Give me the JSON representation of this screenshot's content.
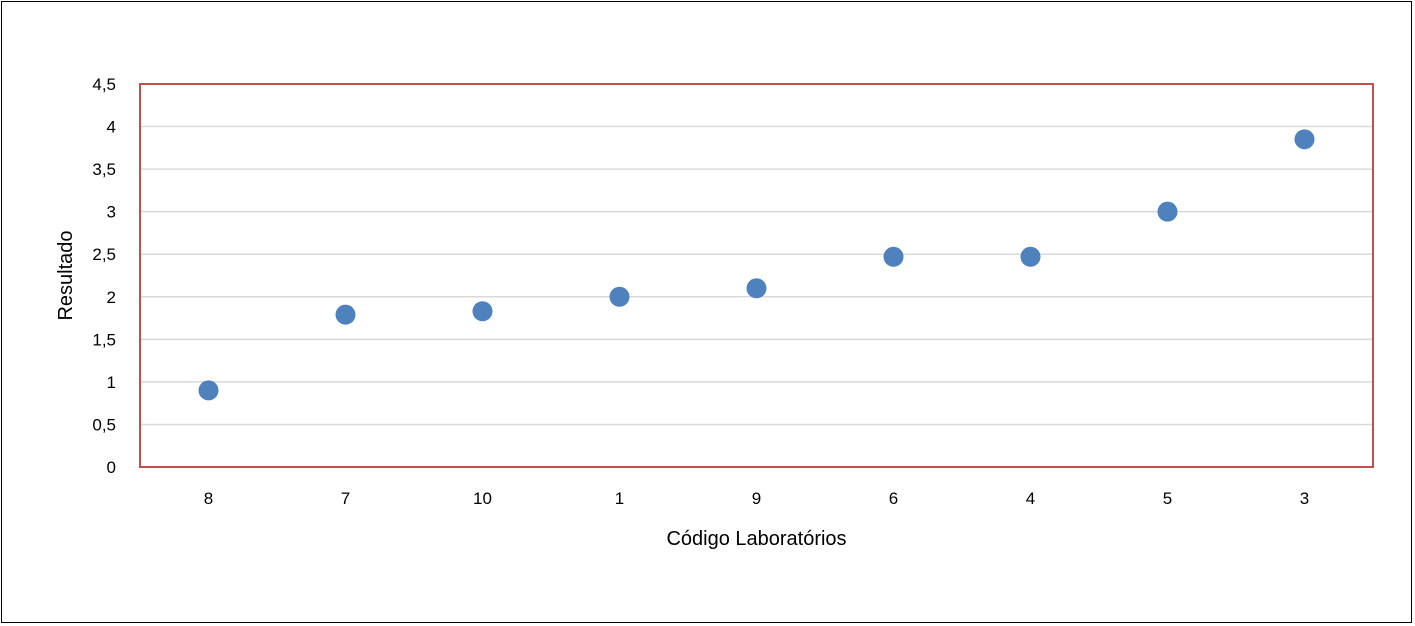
{
  "chart_data": {
    "type": "scatter",
    "title": "",
    "xlabel": "Código Laboratórios",
    "ylabel": "Resultado",
    "categories": [
      "8",
      "7",
      "10",
      "1",
      "9",
      "6",
      "4",
      "5",
      "3"
    ],
    "values": [
      0.9,
      1.79,
      1.83,
      2.0,
      2.1,
      2.47,
      2.47,
      3.0,
      3.85
    ],
    "ylim": [
      0,
      4.5
    ],
    "yticks": [
      "0",
      "0,5",
      "1",
      "1,5",
      "2",
      "2,5",
      "3",
      "3,5",
      "4",
      "4,5"
    ],
    "grid": true,
    "legend": "none",
    "colors": {
      "marker": "#4f81bd",
      "plot_border": "#c0504d",
      "grid": "#d9d9d9"
    }
  }
}
